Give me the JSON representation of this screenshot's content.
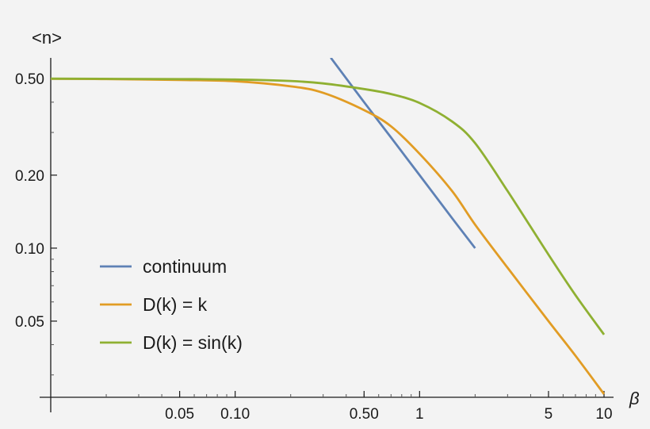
{
  "chart_data": {
    "type": "line",
    "title": "",
    "xlabel": "β",
    "ylabel": "<n>",
    "xscale": "log",
    "yscale": "log",
    "xlim": [
      0.01,
      10
    ],
    "ylim": [
      0.025,
      0.6
    ],
    "x_ticks": [
      {
        "value": 0.05,
        "label": "0.05"
      },
      {
        "value": 0.1,
        "label": "0.10"
      },
      {
        "value": 0.5,
        "label": "0.50"
      },
      {
        "value": 1,
        "label": "1"
      },
      {
        "value": 5,
        "label": "5"
      },
      {
        "value": 10,
        "label": "10"
      }
    ],
    "y_ticks": [
      {
        "value": 0.05,
        "label": "0.05"
      },
      {
        "value": 0.1,
        "label": "0.10"
      },
      {
        "value": 0.2,
        "label": "0.20"
      },
      {
        "value": 0.5,
        "label": "0.50"
      }
    ],
    "legend_position": "bottom-left",
    "series": [
      {
        "name": "continuum",
        "color": "#5e81b5",
        "x": [
          0.33,
          0.5,
          0.7,
          1.0,
          1.5,
          2.0
        ],
        "y": [
          0.61,
          0.4,
          0.286,
          0.2,
          0.133,
          0.1
        ]
      },
      {
        "name": "D(k) = k",
        "color": "#e19c24",
        "x": [
          0.01,
          0.02,
          0.05,
          0.1,
          0.2,
          0.3,
          0.5,
          0.7,
          1.0,
          1.5,
          2.0,
          3.0,
          5.0,
          7.0,
          10.0
        ],
        "y": [
          0.4995,
          0.498,
          0.494,
          0.488,
          0.465,
          0.437,
          0.371,
          0.318,
          0.245,
          0.172,
          0.125,
          0.083,
          0.05,
          0.036,
          0.025
        ]
      },
      {
        "name": "D(k) = sin(k)",
        "color": "#8fb032",
        "x": [
          0.01,
          0.05,
          0.1,
          0.2,
          0.3,
          0.5,
          0.7,
          1.0,
          1.5,
          2.0,
          3.0,
          5.0,
          7.0,
          10.0
        ],
        "y": [
          0.5,
          0.498,
          0.496,
          0.489,
          0.478,
          0.453,
          0.432,
          0.397,
          0.333,
          0.271,
          0.172,
          0.094,
          0.064,
          0.044
        ]
      }
    ]
  }
}
